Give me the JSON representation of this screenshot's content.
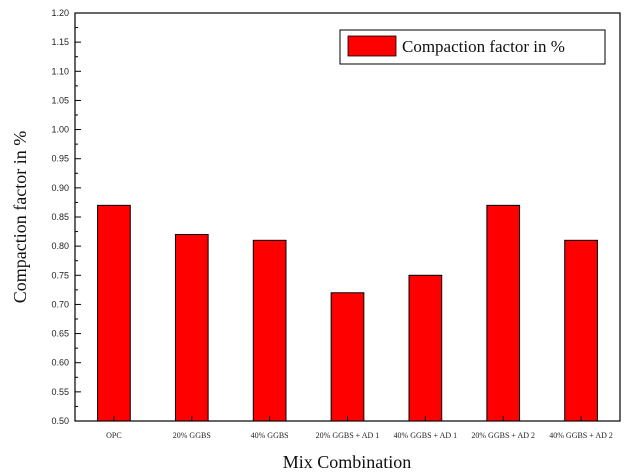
{
  "chart_data": {
    "type": "bar",
    "categories": [
      "OPC",
      "20% GGBS",
      "40% GGBS",
      "20% GGBS + AD 1",
      "40% GGBS + AD 1",
      "20% GGBS + AD 2",
      "40% GGBS + AD 2"
    ],
    "series": [
      {
        "name": "Compaction factor in %",
        "values": [
          0.87,
          0.82,
          0.81,
          0.72,
          0.75,
          0.87,
          0.81
        ],
        "color": "#ff0000"
      }
    ],
    "xlabel": "Mix Combination",
    "ylabel": "Compaction factor in %",
    "ylim": [
      0.5,
      1.2
    ],
    "yticks": [
      "0.50",
      "0.55",
      "0.60",
      "0.65",
      "0.70",
      "0.75",
      "0.80",
      "0.85",
      "0.90",
      "0.95",
      "1.00",
      "1.05",
      "1.10",
      "1.15",
      "1.20"
    ],
    "grid": false,
    "legend_position": "top-right"
  }
}
